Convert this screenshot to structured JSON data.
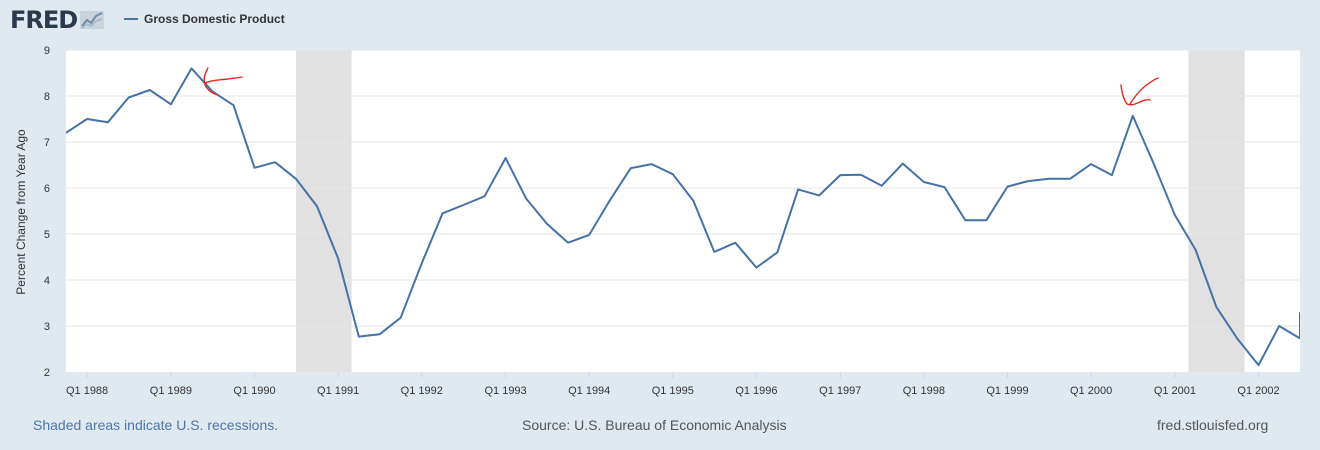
{
  "header": {
    "logo_text": "FRED",
    "logo_icon": "chart-line-icon",
    "legend_label": "Gross Domestic Product"
  },
  "footer": {
    "recession_note": "Shaded areas indicate U.S. recessions.",
    "source": "Source: U.S. Bureau of Economic Analysis",
    "site": "fred.stlouisfed.org"
  },
  "colors": {
    "series": "#4572a7",
    "recession": "#e1e1e1",
    "annotation": "#e8281f",
    "background": "#e1e9f0"
  },
  "chart_data": {
    "type": "line",
    "ylabel": "Percent Change from Year Ago",
    "xlabel": "",
    "ylim": [
      2,
      9
    ],
    "yticks": [
      2,
      3,
      4,
      5,
      6,
      7,
      8,
      9
    ],
    "xlim": [
      "1987-10-01",
      "2002-07-01"
    ],
    "xtick_labels": [
      "Q1 1988",
      "Q1 1989",
      "Q1 1990",
      "Q1 1991",
      "Q1 1992",
      "Q1 1993",
      "Q1 1994",
      "Q1 1995",
      "Q1 1996",
      "Q1 1997",
      "Q1 1998",
      "Q1 1999",
      "Q1 2000",
      "Q1 2001",
      "Q1 2002"
    ],
    "xtick_dates": [
      "1988-01-01",
      "1989-01-01",
      "1990-01-01",
      "1991-01-01",
      "1992-01-01",
      "1993-01-01",
      "1994-01-01",
      "1995-01-01",
      "1996-01-01",
      "1997-01-01",
      "1998-01-01",
      "1999-01-01",
      "2000-01-01",
      "2001-01-01",
      "2002-01-01"
    ],
    "grid": true,
    "legend_position": "top-left",
    "recessions": [
      {
        "start": "1990-07-01",
        "end": "1991-03-01"
      },
      {
        "start": "2001-03-01",
        "end": "2001-11-01"
      }
    ],
    "series": [
      {
        "name": "Gross Domestic Product",
        "x": [
          "1987-10-01",
          "1988-01-01",
          "1988-04-01",
          "1988-07-01",
          "1988-10-01",
          "1989-01-01",
          "1989-04-01",
          "1989-07-01",
          "1989-10-01",
          "1990-01-01",
          "1990-04-01",
          "1990-07-01",
          "1990-10-01",
          "1991-01-01",
          "1991-04-01",
          "1991-07-01",
          "1991-10-01",
          "1992-01-01",
          "1992-04-01",
          "1992-07-01",
          "1992-10-01",
          "1993-01-01",
          "1993-04-01",
          "1993-07-01",
          "1993-10-01",
          "1994-01-01",
          "1994-04-01",
          "1994-07-01",
          "1994-10-01",
          "1995-01-01",
          "1995-04-01",
          "1995-07-01",
          "1995-10-01",
          "1996-01-01",
          "1996-04-01",
          "1996-07-01",
          "1996-10-01",
          "1997-01-01",
          "1997-04-01",
          "1997-07-01",
          "1997-10-01",
          "1998-01-01",
          "1998-04-01",
          "1998-07-01",
          "1998-10-01",
          "1999-01-01",
          "1999-04-01",
          "1999-07-01",
          "1999-10-01",
          "2000-01-01",
          "2000-04-01",
          "2000-07-01",
          "2000-10-01",
          "2001-01-01",
          "2001-04-01",
          "2001-07-01",
          "2001-10-01",
          "2002-01-01",
          "2002-04-01",
          "2002-07-01"
        ],
        "values": [
          7.2,
          7.5,
          7.43,
          7.97,
          8.13,
          7.82,
          8.6,
          8.1,
          7.8,
          6.44,
          6.56,
          6.2,
          5.6,
          4.47,
          2.77,
          2.82,
          3.18,
          4.36,
          5.45,
          5.63,
          5.82,
          6.65,
          5.77,
          5.22,
          4.81,
          4.98,
          5.73,
          6.43,
          6.52,
          6.3,
          5.72,
          4.61,
          4.81,
          4.27,
          4.6,
          5.97,
          5.84,
          6.28,
          6.29,
          6.05,
          6.53,
          6.13,
          6.02,
          5.3,
          5.3,
          6.03,
          6.15,
          6.2,
          6.2,
          6.52,
          6.28,
          7.57,
          6.52,
          5.41,
          4.66,
          3.41,
          2.72,
          2.15,
          3.0,
          2.73
        ]
      },
      {
        "name": "",
        "x": [
          "2002-07-01",
          "2002-10-01"
        ],
        "values": [
          2.73,
          3.3
        ]
      }
    ]
  }
}
